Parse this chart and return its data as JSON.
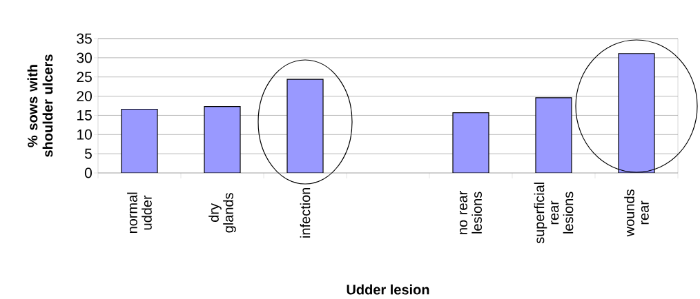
{
  "chart_data": {
    "type": "bar",
    "xlabel": "Udder lesion",
    "ylabel": "% sows with shoulder ulcers",
    "categories": [
      "normal udder",
      "dry glands",
      "infection",
      null,
      "no rear lesions",
      "superficial rear lesions",
      "wounds rear"
    ],
    "values": [
      16.6,
      17.3,
      24.4,
      null,
      15.7,
      19.6,
      31.1
    ],
    "color": "#9999ff",
    "ylim": [
      0,
      35
    ],
    "yticks": [
      0,
      5,
      10,
      15,
      20,
      25,
      30,
      35
    ],
    "grid": "y"
  }
}
